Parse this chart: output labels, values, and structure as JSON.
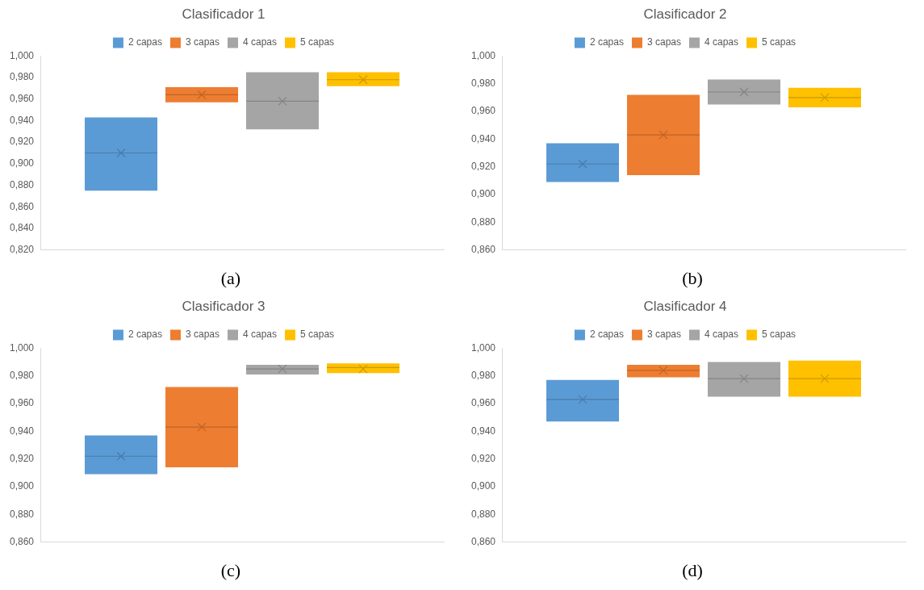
{
  "chart_data": [
    {
      "type": "box",
      "title": "Clasificador 1",
      "categories": [
        null
      ],
      "legend": "top",
      "ylim": [
        0.82,
        1.0
      ],
      "yticks": [
        {
          "value": 0.82,
          "label": "0,820"
        },
        {
          "value": 0.84,
          "label": "0,840"
        },
        {
          "value": 0.86,
          "label": "0,860"
        },
        {
          "value": 0.88,
          "label": "0,880"
        },
        {
          "value": 0.9,
          "label": "0,900"
        },
        {
          "value": 0.92,
          "label": "0,920"
        },
        {
          "value": 0.94,
          "label": "0,940"
        },
        {
          "value": 0.96,
          "label": "0,960"
        },
        {
          "value": 0.98,
          "label": "0,980"
        },
        {
          "value": 1.0,
          "label": "1,000"
        }
      ],
      "annotations": [
        "(a)"
      ],
      "series": [
        {
          "name": "2 capas",
          "color": "#5b9bd5",
          "boxes": [
            {
              "low": 0.875,
              "q1": 0.875,
              "median": 0.91,
              "q3": 0.943,
              "high": 0.943,
              "mean": 0.91
            }
          ]
        },
        {
          "name": "3 capas",
          "color": "#ed7d31",
          "boxes": [
            {
              "low": 0.957,
              "q1": 0.957,
              "median": 0.964,
              "q3": 0.971,
              "high": 0.971,
              "mean": 0.964
            }
          ]
        },
        {
          "name": "4 capas",
          "color": "#a5a5a5",
          "boxes": [
            {
              "low": 0.932,
              "q1": 0.932,
              "median": 0.958,
              "q3": 0.985,
              "high": 0.985,
              "mean": 0.958
            }
          ]
        },
        {
          "name": "5 capas",
          "color": "#ffc000",
          "boxes": [
            {
              "low": 0.972,
              "q1": 0.972,
              "median": 0.978,
              "q3": 0.985,
              "high": 0.985,
              "mean": 0.978
            }
          ]
        }
      ]
    },
    {
      "type": "box",
      "title": "Clasificador 2",
      "categories": [
        null
      ],
      "legend": "top",
      "ylim": [
        0.86,
        1.0
      ],
      "yticks": [
        {
          "value": 0.86,
          "label": "0,860"
        },
        {
          "value": 0.88,
          "label": "0,880"
        },
        {
          "value": 0.9,
          "label": "0,900"
        },
        {
          "value": 0.92,
          "label": "0,920"
        },
        {
          "value": 0.94,
          "label": "0,940"
        },
        {
          "value": 0.96,
          "label": "0,960"
        },
        {
          "value": 0.98,
          "label": "0,980"
        },
        {
          "value": 1.0,
          "label": "1,000"
        }
      ],
      "annotations": [
        "(b)"
      ],
      "series": [
        {
          "name": "2 capas",
          "color": "#5b9bd5",
          "boxes": [
            {
              "low": 0.909,
              "q1": 0.909,
              "median": 0.922,
              "q3": 0.937,
              "high": 0.937,
              "mean": 0.922
            }
          ]
        },
        {
          "name": "3 capas",
          "color": "#ed7d31",
          "boxes": [
            {
              "low": 0.914,
              "q1": 0.914,
              "median": 0.943,
              "q3": 0.972,
              "high": 0.972,
              "mean": 0.943
            }
          ]
        },
        {
          "name": "4 capas",
          "color": "#a5a5a5",
          "boxes": [
            {
              "low": 0.965,
              "q1": 0.965,
              "median": 0.974,
              "q3": 0.983,
              "high": 0.983,
              "mean": 0.974
            }
          ]
        },
        {
          "name": "5 capas",
          "color": "#ffc000",
          "boxes": [
            {
              "low": 0.963,
              "q1": 0.963,
              "median": 0.97,
              "q3": 0.977,
              "high": 0.977,
              "mean": 0.97
            }
          ]
        }
      ]
    },
    {
      "type": "box",
      "title": "Clasificador 3",
      "categories": [
        null
      ],
      "legend": "top",
      "ylim": [
        0.86,
        1.0
      ],
      "yticks": [
        {
          "value": 0.86,
          "label": "0,860"
        },
        {
          "value": 0.88,
          "label": "0,880"
        },
        {
          "value": 0.9,
          "label": "0,900"
        },
        {
          "value": 0.92,
          "label": "0,920"
        },
        {
          "value": 0.94,
          "label": "0,940"
        },
        {
          "value": 0.96,
          "label": "0,960"
        },
        {
          "value": 0.98,
          "label": "0,980"
        },
        {
          "value": 1.0,
          "label": "1,000"
        }
      ],
      "annotations": [
        "(c)"
      ],
      "series": [
        {
          "name": "2 capas",
          "color": "#5b9bd5",
          "boxes": [
            {
              "low": 0.909,
              "q1": 0.909,
              "median": 0.922,
              "q3": 0.937,
              "high": 0.937,
              "mean": 0.922
            }
          ]
        },
        {
          "name": "3 capas",
          "color": "#ed7d31",
          "boxes": [
            {
              "low": 0.914,
              "q1": 0.914,
              "median": 0.943,
              "q3": 0.972,
              "high": 0.972,
              "mean": 0.943
            }
          ]
        },
        {
          "name": "4 capas",
          "color": "#a5a5a5",
          "boxes": [
            {
              "low": 0.981,
              "q1": 0.981,
              "median": 0.985,
              "q3": 0.988,
              "high": 0.988,
              "mean": 0.985
            }
          ]
        },
        {
          "name": "5 capas",
          "color": "#ffc000",
          "boxes": [
            {
              "low": 0.982,
              "q1": 0.982,
              "median": 0.986,
              "q3": 0.989,
              "high": 0.989,
              "mean": 0.985
            }
          ]
        }
      ]
    },
    {
      "type": "box",
      "title": "Clasificador 4",
      "categories": [
        null
      ],
      "legend": "top",
      "ylim": [
        0.86,
        1.0
      ],
      "yticks": [
        {
          "value": 0.86,
          "label": "0,860"
        },
        {
          "value": 0.88,
          "label": "0,880"
        },
        {
          "value": 0.9,
          "label": "0,900"
        },
        {
          "value": 0.92,
          "label": "0,920"
        },
        {
          "value": 0.94,
          "label": "0,940"
        },
        {
          "value": 0.96,
          "label": "0,960"
        },
        {
          "value": 0.98,
          "label": "0,980"
        },
        {
          "value": 1.0,
          "label": "1,000"
        }
      ],
      "annotations": [
        "(d)"
      ],
      "series": [
        {
          "name": "2 capas",
          "color": "#5b9bd5",
          "boxes": [
            {
              "low": 0.947,
              "q1": 0.947,
              "median": 0.963,
              "q3": 0.977,
              "high": 0.977,
              "mean": 0.963
            }
          ]
        },
        {
          "name": "3 capas",
          "color": "#ed7d31",
          "boxes": [
            {
              "low": 0.979,
              "q1": 0.979,
              "median": 0.984,
              "q3": 0.988,
              "high": 0.988,
              "mean": 0.984
            }
          ]
        },
        {
          "name": "4 capas",
          "color": "#a5a5a5",
          "boxes": [
            {
              "low": 0.965,
              "q1": 0.965,
              "median": 0.978,
              "q3": 0.99,
              "high": 0.99,
              "mean": 0.978
            }
          ]
        },
        {
          "name": "5 capas",
          "color": "#ffc000",
          "boxes": [
            {
              "low": 0.965,
              "q1": 0.965,
              "median": 0.978,
              "q3": 0.991,
              "high": 0.991,
              "mean": 0.978
            }
          ]
        }
      ]
    }
  ]
}
